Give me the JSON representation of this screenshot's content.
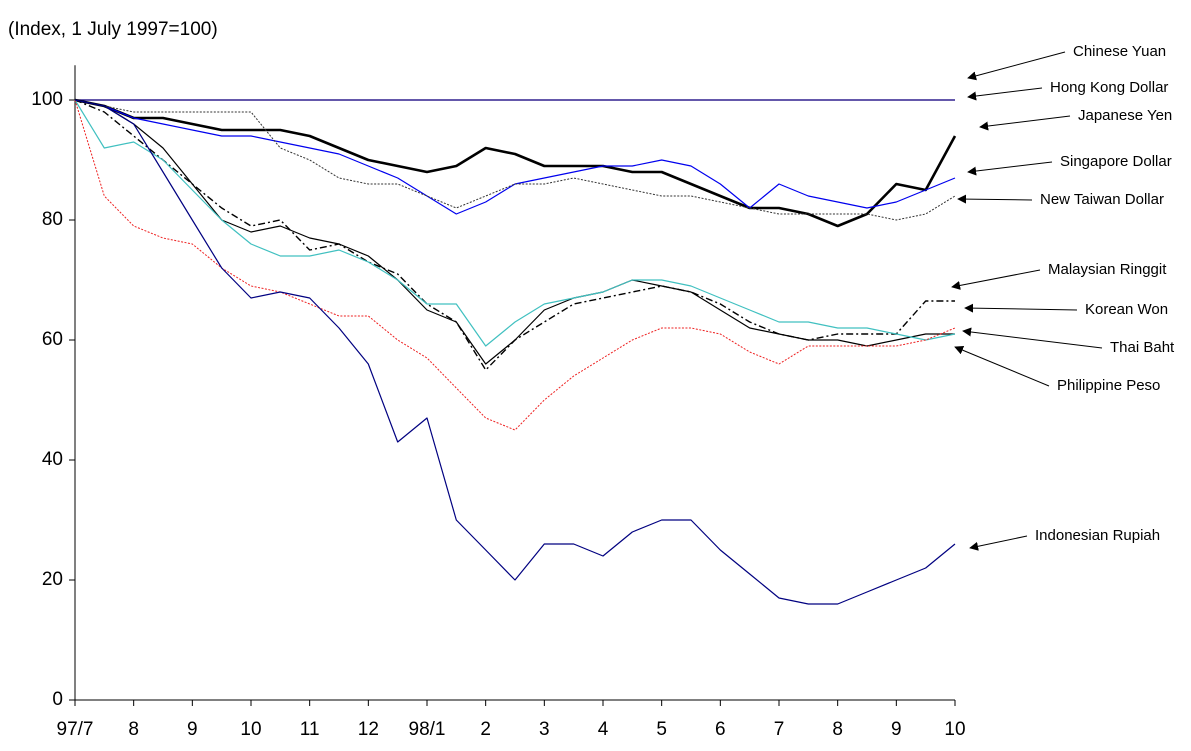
{
  "chart_data": {
    "type": "line",
    "ylabel": "(Index, 1 July 1997=100)",
    "x": [
      0,
      0.5,
      1,
      1.5,
      2,
      2.5,
      3,
      3.5,
      4,
      4.5,
      5,
      5.5,
      6,
      6.5,
      7,
      7.5,
      8,
      8.5,
      9,
      9.5,
      10,
      10.5,
      11,
      11.5,
      12,
      12.5,
      13,
      13.5,
      14,
      14.5,
      15
    ],
    "xlim": [
      0,
      15
    ],
    "xticks": [
      {
        "value": 0,
        "label": "97/7"
      },
      {
        "value": 1,
        "label": "8"
      },
      {
        "value": 2,
        "label": "9"
      },
      {
        "value": 3,
        "label": "10"
      },
      {
        "value": 4,
        "label": "11"
      },
      {
        "value": 5,
        "label": "12"
      },
      {
        "value": 6,
        "label": "98/1"
      },
      {
        "value": 7,
        "label": "2"
      },
      {
        "value": 8,
        "label": "3"
      },
      {
        "value": 9,
        "label": "4"
      },
      {
        "value": 10,
        "label": "5"
      },
      {
        "value": 11,
        "label": "6"
      },
      {
        "value": 12,
        "label": "7"
      },
      {
        "value": 13,
        "label": "8"
      },
      {
        "value": 14,
        "label": "9"
      },
      {
        "value": 15,
        "label": "10"
      }
    ],
    "ylim": [
      0,
      105.8
    ],
    "yticks": [
      0,
      20,
      40,
      60,
      80,
      100
    ],
    "series": [
      {
        "name": "Chinese Yuan",
        "color": "#800080",
        "values": [
          100,
          100,
          100,
          100,
          100,
          100,
          100,
          100,
          100,
          100,
          100,
          100,
          100,
          100,
          100,
          100,
          100,
          100,
          100,
          100,
          100,
          100,
          100,
          100,
          100,
          100,
          100,
          100,
          100,
          100,
          100
        ]
      },
      {
        "name": "Hong Kong Dollar",
        "color": "#1a1a8c",
        "values": [
          100,
          100,
          100,
          100,
          100,
          100,
          100,
          100,
          100,
          100,
          100,
          100,
          100,
          100,
          100,
          100,
          100,
          100,
          100,
          100,
          100,
          100,
          100,
          100,
          100,
          100,
          100,
          100,
          100,
          100,
          100
        ]
      },
      {
        "name": "Japanese Yen",
        "color": "#000000",
        "line_style": "thick",
        "values": [
          100,
          99,
          97,
          97,
          96,
          95,
          95,
          95,
          94,
          92,
          90,
          89,
          88,
          89,
          92,
          91,
          89,
          89,
          89,
          88,
          88,
          86,
          84,
          82,
          82,
          81,
          79,
          81,
          86,
          85,
          94
        ]
      },
      {
        "name": "Singapore Dollar",
        "color": "#0000ee",
        "values": [
          100,
          99,
          97,
          96,
          95,
          94,
          94,
          93,
          92,
          91,
          89,
          87,
          84,
          81,
          83,
          86,
          87,
          88,
          89,
          89,
          90,
          89,
          86,
          82,
          86,
          84,
          83,
          82,
          83,
          85,
          87
        ]
      },
      {
        "name": "New Taiwan Dollar",
        "color": "#333333",
        "line_style": "dotted",
        "values": [
          100,
          99,
          98,
          98,
          98,
          98,
          98,
          92,
          90,
          87,
          86,
          86,
          84,
          82,
          84,
          86,
          86,
          87,
          86,
          85,
          84,
          84,
          83,
          82,
          81,
          81,
          81,
          81,
          80,
          81,
          84
        ]
      },
      {
        "name": "Malaysian Ringgit",
        "color": "#000000",
        "line_style": "dashdot",
        "values": [
          100,
          98,
          94,
          90,
          86,
          82,
          79,
          80,
          75,
          76,
          73,
          71,
          66,
          63,
          55,
          60,
          63,
          66,
          67,
          68,
          69,
          68,
          66,
          63,
          61,
          60,
          61,
          61,
          61,
          66.5,
          66.5
        ]
      },
      {
        "name": "Korean Won",
        "color": "#000000",
        "values": [
          100,
          99,
          96,
          92,
          86,
          80,
          78,
          79,
          77,
          76,
          74,
          70,
          65,
          63,
          56,
          60,
          65,
          67,
          68,
          70,
          69,
          68,
          65,
          62,
          61,
          60,
          60,
          59,
          60,
          61,
          61
        ]
      },
      {
        "name": "Thai Baht",
        "color": "#40c0c0",
        "values": [
          100,
          92,
          93,
          90,
          85,
          80,
          76,
          74,
          74,
          75,
          73,
          70,
          66,
          66,
          59,
          63,
          66,
          67,
          68,
          70,
          70,
          69,
          67,
          65,
          63,
          63,
          62,
          62,
          61,
          60,
          61
        ]
      },
      {
        "name": "Philippine Peso",
        "color": "#ee2020",
        "line_style": "dotted",
        "values": [
          100,
          84,
          79,
          77,
          76,
          72,
          69,
          68,
          66,
          64,
          64,
          60,
          57,
          52,
          47,
          45,
          50,
          54,
          57,
          60,
          62,
          62,
          61,
          58,
          56,
          59,
          59,
          59,
          59,
          60,
          62
        ]
      },
      {
        "name": "Indonesian Rupiah",
        "color": "#000080",
        "values": [
          100,
          99,
          96,
          88,
          80,
          72,
          67,
          68,
          67,
          62,
          56,
          43,
          47,
          30,
          25,
          20,
          26,
          26,
          24,
          28,
          30,
          30,
          25,
          21,
          17,
          16,
          16,
          18,
          20,
          22,
          26
        ]
      }
    ]
  }
}
